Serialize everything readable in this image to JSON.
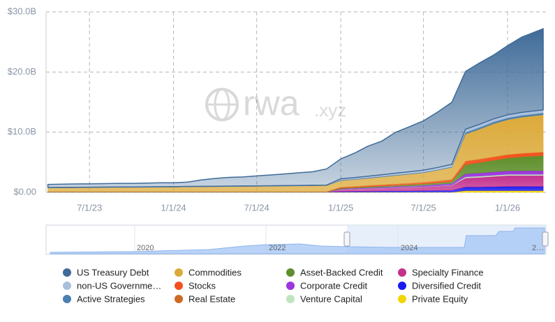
{
  "chart_data": {
    "type": "stacked-area",
    "watermark": {
      "brand": "rwa",
      "domain": ".xyz"
    },
    "x": [
      "2023-04-01",
      "2023-05-01",
      "2023-06-01",
      "2023-07-01",
      "2023-08-01",
      "2023-09-01",
      "2023-10-01",
      "2023-11-01",
      "2023-12-01",
      "2024-01-01",
      "2024-02-01",
      "2024-03-01",
      "2024-04-01",
      "2024-05-01",
      "2024-06-01",
      "2024-07-01",
      "2024-08-01",
      "2024-09-01",
      "2024-10-01",
      "2024-11-01",
      "2024-12-01",
      "2025-01-01",
      "2025-02-01",
      "2025-03-01",
      "2025-04-01",
      "2025-05-01",
      "2025-06-01",
      "2025-07-01",
      "2025-08-01",
      "2025-09-01",
      "2025-10-01",
      "2025-11-01",
      "2025-12-01",
      "2026-01-01",
      "2026-02-01",
      "2026-03-20"
    ],
    "xlim": [
      "2023-03-28",
      "2026-03-26"
    ],
    "xticks": [
      {
        "value": "2023-07-01",
        "label": "7/1/23"
      },
      {
        "value": "2024-01-01",
        "label": "1/1/24"
      },
      {
        "value": "2024-07-01",
        "label": "7/1/24"
      },
      {
        "value": "2025-01-01",
        "label": "1/1/25"
      },
      {
        "value": "2025-07-01",
        "label": "7/1/25"
      },
      {
        "value": "2026-01-01",
        "label": "1/1/26"
      }
    ],
    "ylim": [
      0,
      30
    ],
    "yticks": [
      {
        "value": 0,
        "label": "$0.00"
      },
      {
        "value": 10,
        "label": "$10.0B"
      },
      {
        "value": 20,
        "label": "$20.0B"
      },
      {
        "value": 30,
        "label": "$30.0B"
      }
    ],
    "grid": true,
    "series": [
      {
        "name": "US Treasury Debt",
        "color": "#3f6b98",
        "values": [
          0.5,
          0.52,
          0.55,
          0.55,
          0.57,
          0.6,
          0.6,
          0.62,
          0.65,
          0.65,
          0.72,
          1.05,
          1.3,
          1.45,
          1.5,
          1.65,
          1.8,
          1.95,
          2.1,
          2.25,
          2.7,
          3.3,
          4.1,
          5.0,
          5.6,
          6.8,
          7.5,
          8.2,
          9.2,
          10.3,
          9.6,
          10.2,
          10.6,
          11.5,
          12.5,
          13.5
        ]
      },
      {
        "name": "non-US Governme…",
        "color": "#a9bfdc",
        "values": [
          0.05,
          0.05,
          0.05,
          0.05,
          0.05,
          0.05,
          0.05,
          0.05,
          0.05,
          0.05,
          0.05,
          0.05,
          0.05,
          0.05,
          0.05,
          0.05,
          0.05,
          0.05,
          0.05,
          0.05,
          0.05,
          0.2,
          0.22,
          0.24,
          0.26,
          0.28,
          0.3,
          0.32,
          0.35,
          0.4,
          0.5,
          0.5,
          0.5,
          0.5,
          0.5,
          0.5
        ]
      },
      {
        "name": "Active Strategies",
        "color": "#4a7fb0",
        "values": [
          0.02,
          0.02,
          0.02,
          0.02,
          0.02,
          0.02,
          0.02,
          0.02,
          0.02,
          0.02,
          0.02,
          0.02,
          0.02,
          0.02,
          0.02,
          0.02,
          0.02,
          0.02,
          0.02,
          0.02,
          0.02,
          0.1,
          0.1,
          0.1,
          0.1,
          0.1,
          0.1,
          0.1,
          0.1,
          0.1,
          0.3,
          0.3,
          0.3,
          0.3,
          0.3,
          0.3
        ]
      },
      {
        "name": "Commodities",
        "color": "#dcaa3a",
        "values": [
          0.62,
          0.64,
          0.65,
          0.66,
          0.68,
          0.7,
          0.7,
          0.72,
          0.74,
          0.75,
          0.78,
          0.8,
          0.82,
          0.84,
          0.86,
          0.88,
          0.9,
          0.92,
          0.95,
          0.98,
          1.0,
          1.1,
          1.15,
          1.2,
          1.3,
          1.4,
          1.5,
          1.6,
          1.8,
          2.0,
          4.5,
          5.0,
          5.5,
          5.8,
          6.0,
          6.2
        ]
      },
      {
        "name": "Stocks",
        "color": "#f4511e",
        "values": [
          0.01,
          0.01,
          0.01,
          0.01,
          0.01,
          0.01,
          0.01,
          0.01,
          0.01,
          0.01,
          0.01,
          0.01,
          0.01,
          0.01,
          0.01,
          0.01,
          0.01,
          0.01,
          0.01,
          0.01,
          0.01,
          0.1,
          0.12,
          0.14,
          0.16,
          0.18,
          0.2,
          0.22,
          0.25,
          0.3,
          0.5,
          0.5,
          0.5,
          0.5,
          0.5,
          0.5
        ]
      },
      {
        "name": "Real Estate",
        "color": "#cf6a22",
        "values": [
          0.03,
          0.03,
          0.03,
          0.03,
          0.03,
          0.03,
          0.03,
          0.03,
          0.03,
          0.03,
          0.03,
          0.03,
          0.03,
          0.03,
          0.03,
          0.03,
          0.03,
          0.03,
          0.03,
          0.03,
          0.03,
          0.06,
          0.06,
          0.06,
          0.06,
          0.06,
          0.06,
          0.06,
          0.06,
          0.06,
          0.1,
          0.1,
          0.1,
          0.1,
          0.1,
          0.1
        ]
      },
      {
        "name": "Asset-Backed Credit",
        "color": "#5f8f2c",
        "values": [
          0.02,
          0.02,
          0.02,
          0.02,
          0.02,
          0.02,
          0.02,
          0.02,
          0.02,
          0.02,
          0.02,
          0.02,
          0.02,
          0.02,
          0.02,
          0.02,
          0.02,
          0.02,
          0.02,
          0.02,
          0.02,
          0.1,
          0.12,
          0.14,
          0.16,
          0.18,
          0.2,
          0.22,
          0.25,
          0.3,
          1.5,
          1.7,
          1.9,
          2.1,
          2.3,
          2.5
        ]
      },
      {
        "name": "Corporate Credit",
        "color": "#9a36dc",
        "values": [
          0.01,
          0.01,
          0.01,
          0.01,
          0.01,
          0.01,
          0.01,
          0.01,
          0.01,
          0.01,
          0.01,
          0.01,
          0.01,
          0.01,
          0.01,
          0.01,
          0.01,
          0.01,
          0.01,
          0.01,
          0.01,
          0.1,
          0.12,
          0.14,
          0.16,
          0.18,
          0.2,
          0.22,
          0.25,
          0.3,
          0.5,
          0.52,
          0.55,
          0.58,
          0.6,
          0.6
        ]
      },
      {
        "name": "Venture Capital",
        "color": "#bfe3bf",
        "values": [
          0.01,
          0.01,
          0.01,
          0.01,
          0.01,
          0.01,
          0.01,
          0.01,
          0.01,
          0.01,
          0.01,
          0.01,
          0.01,
          0.01,
          0.01,
          0.01,
          0.01,
          0.01,
          0.01,
          0.01,
          0.01,
          0.05,
          0.05,
          0.05,
          0.05,
          0.05,
          0.05,
          0.05,
          0.05,
          0.05,
          0.2,
          0.2,
          0.2,
          0.2,
          0.2,
          0.2
        ]
      },
      {
        "name": "Specialty Finance",
        "color": "#c4308e",
        "values": [
          0.02,
          0.02,
          0.02,
          0.02,
          0.02,
          0.02,
          0.02,
          0.02,
          0.02,
          0.02,
          0.02,
          0.02,
          0.02,
          0.02,
          0.02,
          0.02,
          0.02,
          0.02,
          0.02,
          0.02,
          0.02,
          0.3,
          0.35,
          0.4,
          0.45,
          0.5,
          0.55,
          0.6,
          0.7,
          0.8,
          1.5,
          1.6,
          1.7,
          1.8,
          1.8,
          1.8
        ]
      },
      {
        "name": "Diversified Credit",
        "color": "#1a1af0",
        "values": [
          0.01,
          0.01,
          0.01,
          0.01,
          0.01,
          0.01,
          0.01,
          0.01,
          0.01,
          0.01,
          0.01,
          0.01,
          0.01,
          0.01,
          0.01,
          0.01,
          0.01,
          0.01,
          0.01,
          0.01,
          0.01,
          0.1,
          0.12,
          0.15,
          0.18,
          0.2,
          0.22,
          0.25,
          0.28,
          0.3,
          0.6,
          0.6,
          0.65,
          0.7,
          0.7,
          0.7
        ]
      },
      {
        "name": "Private Equity",
        "color": "#f3d400",
        "values": [
          0.02,
          0.02,
          0.02,
          0.02,
          0.02,
          0.02,
          0.02,
          0.02,
          0.02,
          0.02,
          0.02,
          0.02,
          0.02,
          0.02,
          0.02,
          0.02,
          0.02,
          0.02,
          0.02,
          0.02,
          0.02,
          0.05,
          0.05,
          0.05,
          0.05,
          0.05,
          0.05,
          0.05,
          0.05,
          0.05,
          0.3,
          0.3,
          0.3,
          0.3,
          0.3,
          0.3
        ]
      }
    ],
    "navigator": {
      "labels": [
        "2020",
        "2022",
        "2024",
        "2…"
      ]
    }
  }
}
